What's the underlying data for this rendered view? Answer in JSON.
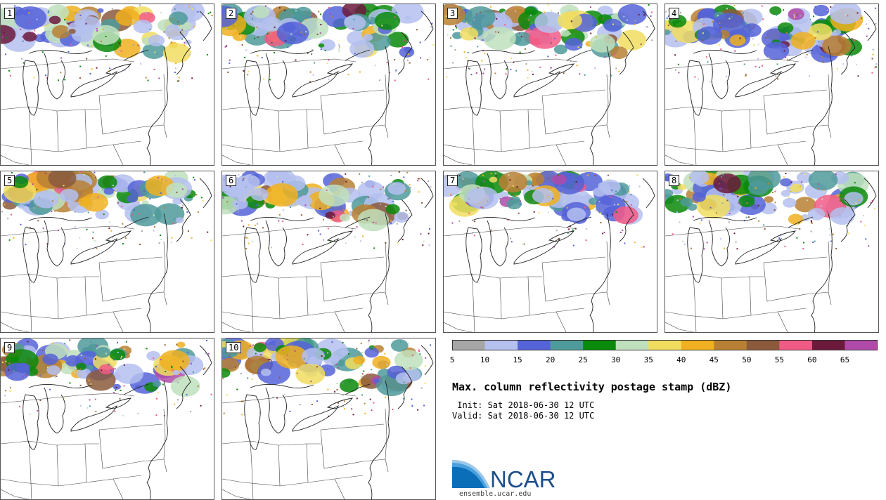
{
  "panels": [
    {
      "label": "1",
      "seed": 11
    },
    {
      "label": "2",
      "seed": 23
    },
    {
      "label": "3",
      "seed": 37
    },
    {
      "label": "4",
      "seed": 41
    },
    {
      "label": "5",
      "seed": 53
    },
    {
      "label": "6",
      "seed": 67
    },
    {
      "label": "7",
      "seed": 71
    },
    {
      "label": "8",
      "seed": 89
    },
    {
      "label": "9",
      "seed": 97
    },
    {
      "label": "10",
      "seed": 103
    }
  ],
  "colorbar": {
    "ticks": [
      "5",
      "10",
      "15",
      "20",
      "25",
      "30",
      "35",
      "40",
      "45",
      "50",
      "55",
      "60",
      "65"
    ],
    "colors": [
      "#a6a6a6",
      "#b4c0ee",
      "#5563d8",
      "#4f9a9a",
      "#0a8a0a",
      "#bfe0bd",
      "#f0dd60",
      "#f0b020",
      "#b88034",
      "#8b5a3c",
      "#f25a86",
      "#6b1a3c",
      "#b04aa8"
    ]
  },
  "title": "Max. column reflectivity postage stamp (dBZ)",
  "init_text": " Init: Sat 2018-06-30 12 UTC",
  "valid_text": "Valid: Sat 2018-06-30 12 UTC",
  "logo": {
    "text": "NCAR",
    "url": "ensemble.ucar.edu"
  }
}
